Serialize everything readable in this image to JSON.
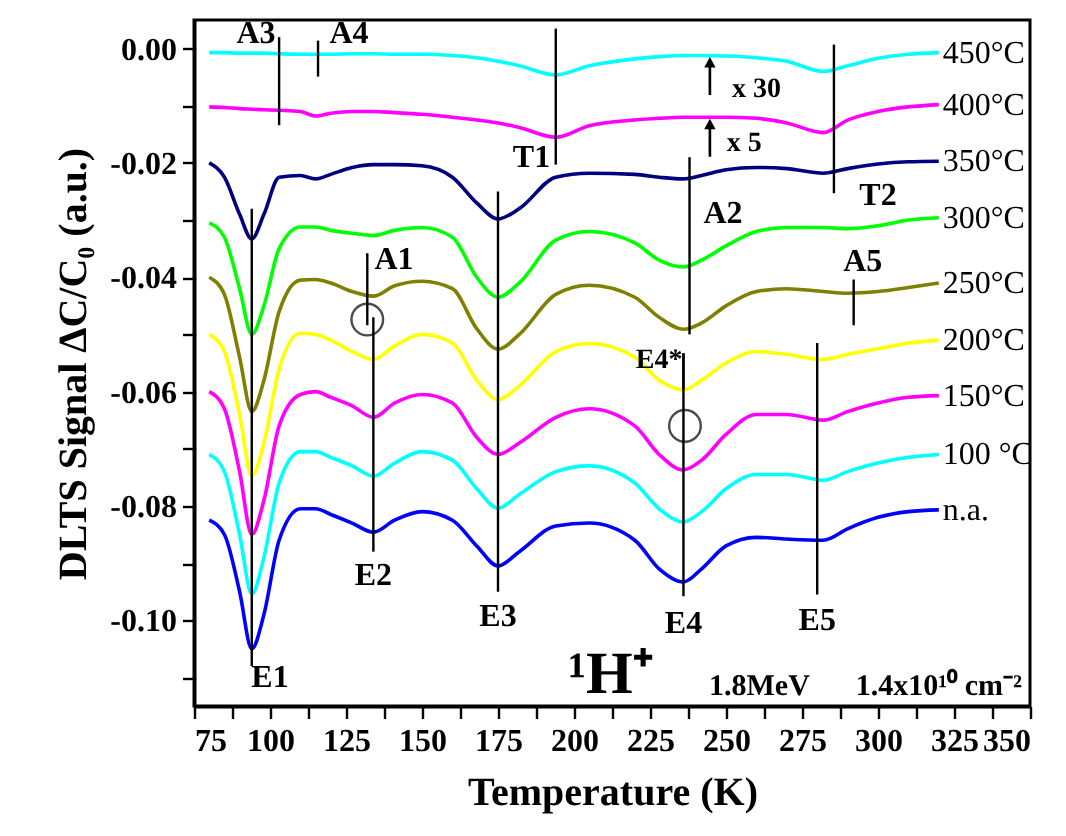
{
  "chart_data": {
    "type": "line",
    "xlabel": "Temperature (K)",
    "ylabel": "DLTS Signal ΔC/C₀ (a.u.)",
    "x": [
      80,
      85,
      90,
      94,
      98,
      103,
      110,
      115,
      120,
      127,
      134,
      141,
      150,
      160,
      168,
      175,
      182,
      194,
      205,
      220,
      228,
      236,
      242,
      250,
      260,
      270,
      282,
      290,
      300,
      310,
      320
    ],
    "series": [
      {
        "name": "450°C",
        "color": "#00ffff",
        "values": [
          -0.0007,
          -0.0007,
          -0.0008,
          -0.0008,
          -0.0008,
          -0.0009,
          -0.001,
          -0.001,
          -0.001,
          -0.0009,
          -0.0009,
          -0.001,
          -0.001,
          -0.0012,
          -0.0016,
          -0.0022,
          -0.003,
          -0.0046,
          -0.003,
          -0.0018,
          -0.0014,
          -0.0012,
          -0.0012,
          -0.0013,
          -0.0016,
          -0.0022,
          -0.004,
          -0.003,
          -0.0017,
          -0.001,
          -0.0007
        ]
      },
      {
        "name": "400°C",
        "color": "#ff00ff",
        "values": [
          -0.0102,
          -0.0103,
          -0.0105,
          -0.0106,
          -0.0107,
          -0.0108,
          -0.011,
          -0.0118,
          -0.0113,
          -0.011,
          -0.011,
          -0.0112,
          -0.0115,
          -0.012,
          -0.0125,
          -0.013,
          -0.0138,
          -0.0155,
          -0.0135,
          -0.0125,
          -0.0122,
          -0.012,
          -0.012,
          -0.012,
          -0.0122,
          -0.013,
          -0.0147,
          -0.0125,
          -0.011,
          -0.0102,
          -0.0098
        ]
      },
      {
        "name": "350°C",
        "color": "#000080",
        "values": [
          -0.02,
          -0.0225,
          -0.029,
          -0.0333,
          -0.029,
          -0.0225,
          -0.0222,
          -0.0228,
          -0.022,
          -0.0208,
          -0.0203,
          -0.0203,
          -0.0205,
          -0.0225,
          -0.027,
          -0.0298,
          -0.028,
          -0.0225,
          -0.0218,
          -0.022,
          -0.0225,
          -0.0228,
          -0.0222,
          -0.0212,
          -0.0208,
          -0.021,
          -0.0218,
          -0.021,
          -0.0202,
          -0.0198,
          -0.0197
        ]
      },
      {
        "name": "300°C",
        "color": "#00ff00",
        "values": [
          -0.0305,
          -0.033,
          -0.042,
          -0.05,
          -0.045,
          -0.035,
          -0.0312,
          -0.0312,
          -0.0318,
          -0.0323,
          -0.0327,
          -0.0318,
          -0.0313,
          -0.033,
          -0.04,
          -0.0435,
          -0.041,
          -0.0335,
          -0.032,
          -0.034,
          -0.037,
          -0.0382,
          -0.037,
          -0.0345,
          -0.032,
          -0.0313,
          -0.0313,
          -0.0315,
          -0.031,
          -0.03,
          -0.0296
        ]
      },
      {
        "name": "250°C",
        "color": "#808000",
        "values": [
          -0.04,
          -0.043,
          -0.054,
          -0.0635,
          -0.058,
          -0.046,
          -0.0405,
          -0.0404,
          -0.041,
          -0.0425,
          -0.0433,
          -0.0415,
          -0.0407,
          -0.042,
          -0.049,
          -0.0526,
          -0.05,
          -0.043,
          -0.0414,
          -0.0435,
          -0.047,
          -0.0491,
          -0.048,
          -0.045,
          -0.0425,
          -0.042,
          -0.0425,
          -0.0428,
          -0.0425,
          -0.0418,
          -0.041
        ]
      },
      {
        "name": "200°C",
        "color": "#ffff00",
        "values": [
          -0.05,
          -0.053,
          -0.064,
          -0.0748,
          -0.069,
          -0.056,
          -0.0498,
          -0.05,
          -0.051,
          -0.053,
          -0.0544,
          -0.052,
          -0.05,
          -0.0515,
          -0.058,
          -0.0614,
          -0.059,
          -0.053,
          -0.0516,
          -0.054,
          -0.058,
          -0.0597,
          -0.058,
          -0.055,
          -0.053,
          -0.0535,
          -0.0544,
          -0.0535,
          -0.0525,
          -0.0515,
          -0.051
        ]
      },
      {
        "name": "150°C",
        "color": "#ff00ff",
        "values": [
          -0.06,
          -0.063,
          -0.074,
          -0.085,
          -0.079,
          -0.066,
          -0.0605,
          -0.06,
          -0.061,
          -0.0625,
          -0.0645,
          -0.062,
          -0.0605,
          -0.062,
          -0.068,
          -0.071,
          -0.069,
          -0.0645,
          -0.063,
          -0.066,
          -0.071,
          -0.0737,
          -0.072,
          -0.0675,
          -0.064,
          -0.064,
          -0.065,
          -0.0635,
          -0.062,
          -0.061,
          -0.0607
        ]
      },
      {
        "name": "100 °C",
        "color": "#00ffff",
        "values": [
          -0.071,
          -0.074,
          -0.085,
          -0.0954,
          -0.089,
          -0.076,
          -0.0705,
          -0.0705,
          -0.0715,
          -0.073,
          -0.0748,
          -0.0725,
          -0.0705,
          -0.072,
          -0.077,
          -0.0804,
          -0.078,
          -0.074,
          -0.073,
          -0.076,
          -0.0805,
          -0.0828,
          -0.081,
          -0.077,
          -0.0745,
          -0.0745,
          -0.0755,
          -0.074,
          -0.0725,
          -0.0715,
          -0.071
        ]
      },
      {
        "name": "n.a.",
        "color": "#0000ff",
        "values": [
          -0.0825,
          -0.085,
          -0.095,
          -0.105,
          -0.099,
          -0.086,
          -0.0805,
          -0.0805,
          -0.0815,
          -0.083,
          -0.0846,
          -0.0825,
          -0.081,
          -0.0825,
          -0.087,
          -0.0905,
          -0.088,
          -0.0835,
          -0.083,
          -0.086,
          -0.091,
          -0.0933,
          -0.091,
          -0.087,
          -0.0855,
          -0.0858,
          -0.086,
          -0.084,
          -0.082,
          -0.081,
          -0.0807
        ]
      }
    ],
    "xlim": [
      75,
      350
    ],
    "xticks": [
      75,
      {
        "value": 87.5,
        "label": null
      },
      100,
      {
        "value": 112.5,
        "label": null
      },
      125,
      {
        "value": 137.5,
        "label": null
      },
      150,
      {
        "value": 162.5,
        "label": null
      },
      175,
      {
        "value": 187.5,
        "label": null
      },
      200,
      {
        "value": 212.5,
        "label": null
      },
      225,
      {
        "value": 237.5,
        "label": null
      },
      250,
      {
        "value": 262.5,
        "label": null
      },
      275,
      {
        "value": 287.5,
        "label": null
      },
      300,
      {
        "value": 312.5,
        "label": null
      },
      325,
      {
        "value": 337.5,
        "label": null
      },
      350
    ],
    "ylim": [
      -0.115,
      0.005
    ],
    "yticks": [
      {
        "value": 0,
        "label": "0.00"
      },
      {
        "value": -0.01,
        "label": null
      },
      {
        "value": -0.02,
        "label": "-0.02"
      },
      {
        "value": -0.03,
        "label": null
      },
      {
        "value": -0.04,
        "label": "-0.04"
      },
      {
        "value": -0.05,
        "label": null
      },
      {
        "value": -0.06,
        "label": "-0.06"
      },
      {
        "value": -0.07,
        "label": null
      },
      {
        "value": -0.08,
        "label": "-0.08"
      },
      {
        "value": -0.09,
        "label": null
      },
      {
        "value": -0.1,
        "label": "-0.10"
      },
      {
        "value": -0.11,
        "label": null
      }
    ],
    "annotations": [
      {
        "text": "A3",
        "x": 103,
        "y": -0.0108
      },
      {
        "text": "A4",
        "x": 115.8,
        "y": -0.001
      },
      {
        "text": "T1",
        "x": 194,
        "y": -0.0155
      },
      "x 30",
      "x 5",
      {
        "text": "T2",
        "x": 285.5,
        "y": -0.0147
      },
      {
        "text": "A1",
        "x": 132,
        "y": -0.0433
      },
      {
        "text": "A2",
        "x": 238,
        "y": -0.0382
      },
      {
        "text": "A5",
        "x": 292,
        "y": -0.0428
      },
      {
        "text": "E4*",
        "x": 236,
        "y": -0.0597
      },
      {
        "text": "E1",
        "x": 94,
        "y": -0.105
      },
      {
        "text": "E2",
        "x": 134,
        "y": -0.0846
      },
      {
        "text": "E3",
        "x": 175,
        "y": -0.0905
      },
      {
        "text": "E4",
        "x": 236,
        "y": -0.0933
      },
      {
        "text": "E5",
        "x": 280,
        "y": -0.086
      },
      "¹H⁺",
      "1.8MeV",
      "1.4x10¹⁰ cm⁻²"
    ],
    "grid": false,
    "marker": "none",
    "line_style": "solid"
  }
}
